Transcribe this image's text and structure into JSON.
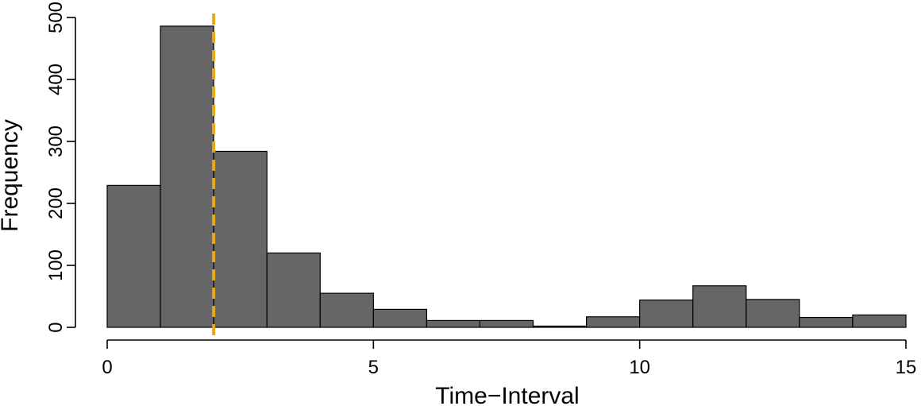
{
  "chart_data": {
    "type": "bar",
    "subtype": "histogram",
    "title": "",
    "xlabel": "Time−Interval",
    "ylabel": "Frequency",
    "xlim": [
      0,
      15
    ],
    "ylim": [
      0,
      500
    ],
    "x_ticks": [
      0,
      5,
      10,
      15
    ],
    "y_ticks": [
      0,
      100,
      200,
      300,
      400,
      500
    ],
    "bin_edges": [
      0,
      1,
      2,
      3,
      4,
      5,
      6,
      7,
      8,
      9,
      10,
      11,
      12,
      13,
      14,
      15
    ],
    "values": [
      229,
      486,
      284,
      120,
      55,
      29,
      11,
      11,
      2,
      17,
      44,
      67,
      45,
      16,
      20
    ],
    "reference_line": {
      "x": 2,
      "style": "dashed"
    },
    "grid": false,
    "colors": {
      "bar_fill": "#666666",
      "bar_edge": "#000000",
      "reference_line": "#E6AA14"
    }
  }
}
